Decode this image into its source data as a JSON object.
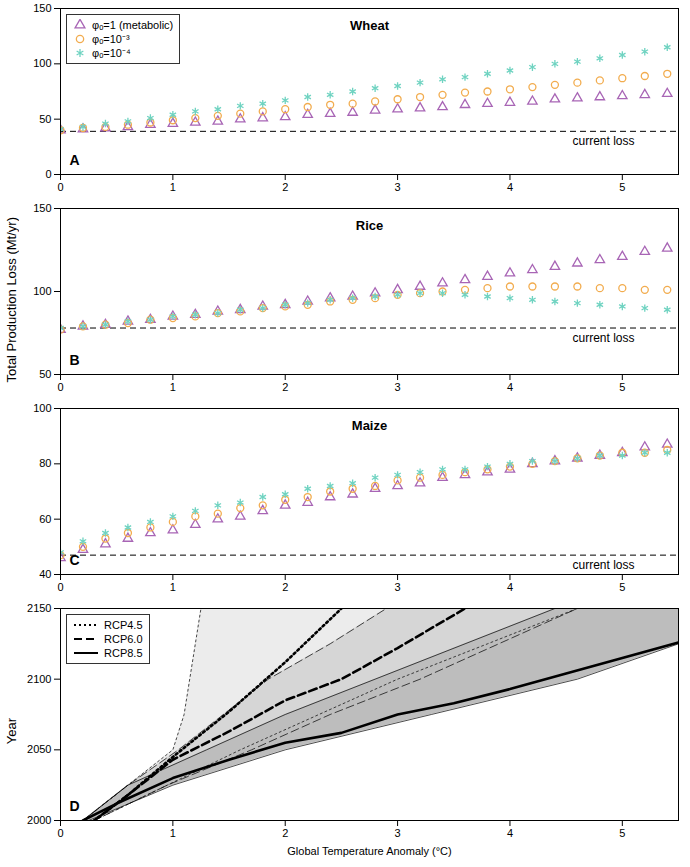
{
  "chart_data": [
    {
      "type": "scatter",
      "title": "Wheat",
      "panel_label": "A",
      "x": [
        0,
        0.2,
        0.4,
        0.6,
        0.8,
        1,
        1.2,
        1.4,
        1.6,
        1.8,
        2,
        2.2,
        2.4,
        2.6,
        2.8,
        3,
        3.2,
        3.4,
        3.6,
        3.8,
        4,
        4.2,
        4.4,
        4.6,
        4.8,
        5,
        5.2,
        5.4
      ],
      "xlim": [
        0,
        5.5
      ],
      "xticks": [
        0,
        1,
        2,
        3,
        4,
        5
      ],
      "ylim": [
        0,
        150
      ],
      "yticks": [
        0,
        50,
        100,
        150
      ],
      "grid": false,
      "legend": "top-left",
      "reference_line": {
        "value": 39,
        "label": "current loss"
      },
      "series": [
        {
          "name": "φₒ=1 (metabolic)",
          "color": "#a865b5",
          "marker": "triangle",
          "values": [
            40,
            41,
            42,
            43,
            45,
            46,
            47,
            48,
            50,
            51,
            52,
            54,
            55,
            56,
            58,
            59,
            60,
            61,
            63,
            64,
            65,
            66,
            68,
            69,
            70,
            71,
            72,
            73
          ]
        },
        {
          "name": "φₒ=10⁻³",
          "color": "#f2ac4e",
          "marker": "circle",
          "values": [
            40,
            42,
            43,
            45,
            47,
            49,
            51,
            53,
            55,
            57,
            59,
            61,
            63,
            64,
            66,
            68,
            70,
            72,
            74,
            75,
            77,
            79,
            81,
            83,
            85,
            87,
            89,
            91
          ]
        },
        {
          "name": "φₒ=10⁻⁴",
          "color": "#6fd3c1",
          "marker": "asterisk",
          "values": [
            41,
            43,
            46,
            48,
            51,
            54,
            57,
            59,
            62,
            64,
            67,
            70,
            72,
            75,
            78,
            80,
            83,
            86,
            88,
            91,
            94,
            97,
            100,
            102,
            105,
            108,
            111,
            115
          ]
        }
      ]
    },
    {
      "type": "scatter",
      "title": "Rice",
      "panel_label": "B",
      "ylabel": "Total Production Loss (Mt/yr)",
      "x": [
        0,
        0.2,
        0.4,
        0.6,
        0.8,
        1,
        1.2,
        1.4,
        1.6,
        1.8,
        2,
        2.2,
        2.4,
        2.6,
        2.8,
        3,
        3.2,
        3.4,
        3.6,
        3.8,
        4,
        4.2,
        4.4,
        4.6,
        4.8,
        5,
        5.2,
        5.4
      ],
      "xlim": [
        0,
        5.5
      ],
      "xticks": [
        0,
        1,
        2,
        3,
        4,
        5
      ],
      "ylim": [
        50,
        150
      ],
      "yticks": [
        50,
        100,
        150
      ],
      "grid": false,
      "legend": "none",
      "reference_line": {
        "value": 78,
        "label": "current loss"
      },
      "series": [
        {
          "name": "φₒ=1 (metabolic)",
          "color": "#a865b5",
          "marker": "triangle",
          "values": [
            77,
            79,
            80,
            82,
            83,
            85,
            86,
            88,
            89,
            91,
            92,
            94,
            96,
            97,
            99,
            101,
            103,
            105,
            107,
            109,
            111,
            113,
            115,
            117,
            119,
            121,
            124,
            126
          ]
        },
        {
          "name": "φₒ=10⁻³",
          "color": "#f2ac4e",
          "marker": "circle",
          "values": [
            77,
            79,
            80,
            81,
            83,
            84,
            85,
            87,
            88,
            90,
            91,
            92,
            94,
            95,
            96,
            98,
            99,
            100,
            101,
            102,
            103,
            103,
            103,
            103,
            102,
            102,
            101,
            101
          ]
        },
        {
          "name": "φₒ=10⁻⁴",
          "color": "#6fd3c1",
          "marker": "asterisk",
          "values": [
            78,
            79,
            80,
            82,
            83,
            85,
            86,
            87,
            89,
            90,
            92,
            93,
            95,
            96,
            97,
            98,
            99,
            99,
            98,
            97,
            96,
            95,
            94,
            93,
            92,
            91,
            90,
            89
          ]
        }
      ]
    },
    {
      "type": "scatter",
      "title": "Maize",
      "panel_label": "C",
      "x": [
        0,
        0.2,
        0.4,
        0.6,
        0.8,
        1,
        1.2,
        1.4,
        1.6,
        1.8,
        2,
        2.2,
        2.4,
        2.6,
        2.8,
        3,
        3.2,
        3.4,
        3.6,
        3.8,
        4,
        4.2,
        4.4,
        4.6,
        4.8,
        5,
        5.2,
        5.4
      ],
      "xlim": [
        0,
        5.5
      ],
      "xticks": [
        0,
        1,
        2,
        3,
        4,
        5
      ],
      "ylim": [
        40,
        100
      ],
      "yticks": [
        40,
        60,
        80,
        100
      ],
      "grid": false,
      "legend": "none",
      "reference_line": {
        "value": 47,
        "label": "current loss"
      },
      "series": [
        {
          "name": "φₒ=1 (metabolic)",
          "color": "#a865b5",
          "marker": "triangle",
          "values": [
            46,
            49,
            51,
            53,
            55,
            56,
            58,
            60,
            61,
            63,
            65,
            66,
            68,
            69,
            71,
            72,
            73,
            75,
            76,
            77,
            78,
            80,
            81,
            82,
            83,
            84,
            86,
            87
          ]
        },
        {
          "name": "φₒ=10⁻³",
          "color": "#f2ac4e",
          "marker": "circle",
          "values": [
            47,
            50,
            53,
            55,
            57,
            59,
            61,
            62,
            64,
            65,
            67,
            68,
            70,
            71,
            72,
            74,
            75,
            76,
            77,
            78,
            79,
            80,
            81,
            82,
            83,
            84,
            84,
            85
          ]
        },
        {
          "name": "φₒ=10⁻⁴",
          "color": "#6fd3c1",
          "marker": "asterisk",
          "values": [
            48,
            52,
            55,
            57,
            59,
            61,
            63,
            65,
            66,
            68,
            69,
            71,
            72,
            73,
            75,
            76,
            77,
            78,
            78,
            79,
            80,
            81,
            81,
            82,
            83,
            83,
            84,
            84
          ]
        }
      ]
    },
    {
      "type": "line",
      "panel_label": "D",
      "xlabel": "Global Temperature Anomaly (°C)",
      "ylabel": "Year",
      "xlim": [
        0,
        5.5
      ],
      "xticks": [
        0,
        1,
        2,
        3,
        4,
        5
      ],
      "ylim": [
        2000,
        2150
      ],
      "yticks": [
        2000,
        2050,
        2100,
        2150
      ],
      "grid": false,
      "legend": "top-left",
      "series": [
        {
          "name": "RCP4.5",
          "color": "#000000",
          "line_style": "dotted",
          "x": [
            0.3,
            0.6,
            1,
            1.5,
            2,
            2.5
          ],
          "y": [
            2000,
            2018,
            2045,
            2077,
            2112,
            2150
          ],
          "band": {
            "color": "#ececec",
            "y": [
              2000,
              2025,
              2050,
              2075,
              2100,
              2125,
              2150
            ],
            "x_low": [
              0.2,
              0.6,
              1.0,
              1.1,
              1.15,
              1.2,
              1.25
            ],
            "x_high": [
              0.3,
              0.95,
              1.6,
              2.3,
              3.0,
              3.8,
              4.6
            ]
          }
        },
        {
          "name": "RCP6.0",
          "color": "#000000",
          "line_style": "dashed",
          "x": [
            0.3,
            0.6,
            1,
            1.5,
            2,
            2.5,
            3,
            3.6
          ],
          "y": [
            2000,
            2018,
            2043,
            2063,
            2085,
            2100,
            2122,
            2150
          ],
          "band": {
            "color": "#d6d6d6",
            "y": [
              2000,
              2025,
              2050,
              2075,
              2100,
              2125,
              2150
            ],
            "x_low": [
              0.2,
              0.6,
              1.05,
              1.45,
              1.85,
              2.4,
              2.9
            ],
            "x_high": [
              0.3,
              0.95,
              1.7,
              2.4,
              3.2,
              3.9,
              4.6
            ]
          }
        },
        {
          "name": "RCP8.5",
          "color": "#000000",
          "line_style": "solid",
          "x": [
            0.2,
            0.5,
            1,
            1.5,
            2,
            2.5,
            3,
            3.5,
            4,
            4.5,
            5,
            5.5
          ],
          "y": [
            2000,
            2012,
            2030,
            2043,
            2055,
            2062,
            2075,
            2083,
            2093,
            2104,
            2115,
            2126
          ],
          "band": {
            "color": "#bdbdbd",
            "y": [
              2000,
              2025,
              2050,
              2075,
              2100,
              2125,
              2150
            ],
            "x_low": [
              0.2,
              0.6,
              1.3,
              2.0,
              2.8,
              3.6,
              4.4
            ],
            "x_high": [
              0.25,
              1.0,
              2.0,
              3.3,
              4.6,
              5.5,
              6.5
            ]
          }
        }
      ]
    }
  ]
}
